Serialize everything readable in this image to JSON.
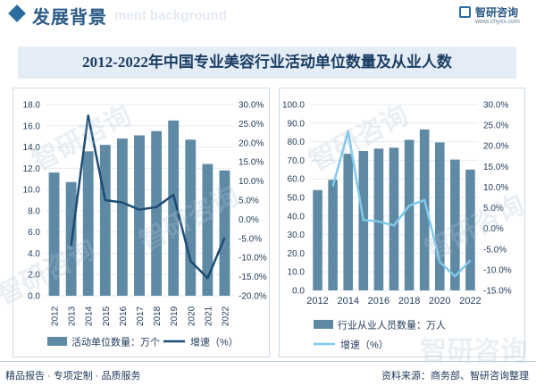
{
  "header": {
    "title": "发展背景",
    "subtitle_watermark": "ment background",
    "brand_name": "智研咨询",
    "brand_url": "www.chyxx.com"
  },
  "main_title": "2012-2022年中国专业美容行业活动单位数量及从业人数",
  "watermark_text": "智研咨询",
  "footer": {
    "left": "精品报告 · 专项定制 · 品质服务",
    "right": "资料来源：商务部、智研咨询整理"
  },
  "colors": {
    "bar": "#5f8aa5",
    "line_left": "#1c4c72",
    "line_right": "#7fc9ea",
    "grid": "#e6ebf0",
    "text": "#1f3a5a"
  },
  "chart_data": [
    {
      "type": "bar",
      "categories": [
        "2012",
        "2013",
        "2014",
        "2015",
        "2016",
        "2017",
        "2018",
        "2019",
        "2020",
        "2021",
        "2022"
      ],
      "series": [
        {
          "name": "活动单位数量：万个",
          "type": "bar",
          "axis": "left",
          "values": [
            11.6,
            10.7,
            13.6,
            14.2,
            14.8,
            15.1,
            15.5,
            16.5,
            14.7,
            12.4,
            11.8
          ]
        },
        {
          "name": "增速（%）",
          "type": "line",
          "axis": "right",
          "values": [
            null,
            -6.9,
            27.1,
            5.0,
            4.4,
            2.5,
            3.2,
            6.4,
            -10.9,
            -15.4,
            -4.8
          ]
        }
      ],
      "left_axis": {
        "min": 0,
        "max": 18,
        "step": 2,
        "decimals": 1
      },
      "right_axis": {
        "min": -20,
        "max": 30,
        "step": 5,
        "suffix": "%",
        "decimals": 1
      }
    },
    {
      "type": "bar",
      "categories": [
        "2012",
        "2013",
        "2014",
        "2015",
        "2016",
        "2017",
        "2018",
        "2019",
        "2020",
        "2021",
        "2022"
      ],
      "tick_labels": [
        "2012",
        "",
        "2014",
        "",
        "2016",
        "",
        "2018",
        "",
        "2020",
        "",
        "2022"
      ],
      "series": [
        {
          "name": "行业从业人员数量：万人",
          "type": "bar",
          "axis": "left",
          "values": [
            54.0,
            59.5,
            73.5,
            75.0,
            76.3,
            76.8,
            81.0,
            86.6,
            79.6,
            70.4,
            65.0
          ]
        },
        {
          "name": "增速（%）",
          "type": "line",
          "axis": "right",
          "values": [
            null,
            10.2,
            23.5,
            2.0,
            1.7,
            0.7,
            5.5,
            6.9,
            -8.1,
            -11.6,
            -7.7
          ]
        }
      ],
      "left_axis": {
        "min": 0,
        "max": 100,
        "step": 10,
        "decimals": 1
      },
      "right_axis": {
        "min": -15,
        "max": 30,
        "step": 5,
        "suffix": "%",
        "decimals": 1
      }
    }
  ]
}
